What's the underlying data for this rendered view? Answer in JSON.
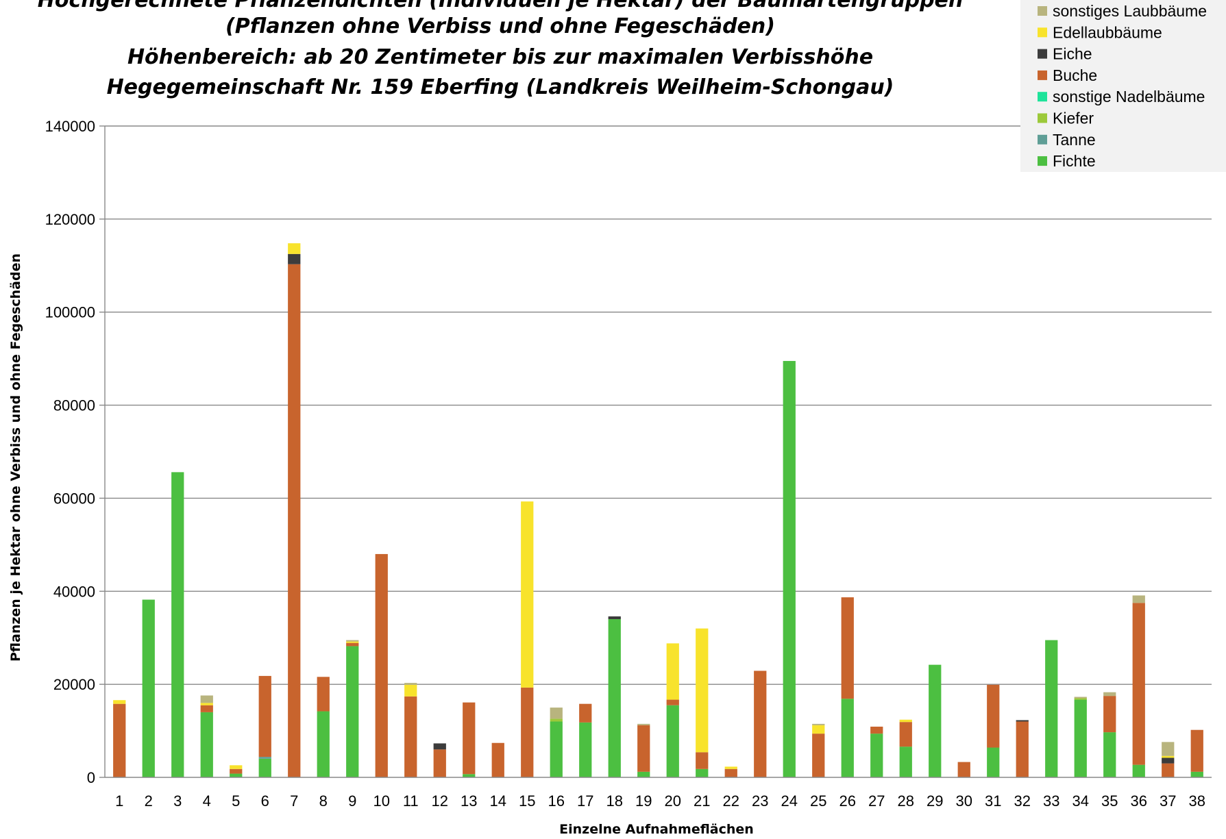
{
  "chart_data": {
    "type": "bar",
    "stacked": true,
    "title_lines": [
      "Hochgerechnete Pflanzendichten (Individuen je Hektar) der Baumartengruppen",
      "(Pflanzen ohne Verbiss und ohne Fegeschäden)",
      "Höhenbereich: ab 20 Zentimeter bis zur maximalen Verbisshöhe",
      "Hegegemeinschaft Nr. 159 Eberfing (Landkreis Weilheim-Schongau)"
    ],
    "xlabel": "Einzelne Aufnahmeflächen",
    "ylabel": "Pflanzen je Hektar ohne Verbiss und ohne Fegeschäden",
    "ylim": [
      0,
      140000
    ],
    "yticks": [
      0,
      20000,
      40000,
      60000,
      80000,
      100000,
      120000,
      140000
    ],
    "grid": true,
    "legend_position": "top-right",
    "categories": [
      "1",
      "2",
      "3",
      "4",
      "5",
      "6",
      "7",
      "8",
      "9",
      "10",
      "11",
      "12",
      "13",
      "14",
      "15",
      "16",
      "17",
      "18",
      "19",
      "20",
      "21",
      "22",
      "23",
      "24",
      "25",
      "26",
      "27",
      "28",
      "29",
      "30",
      "31",
      "32",
      "33",
      "34",
      "35",
      "36",
      "37",
      "38"
    ],
    "series": [
      {
        "name": "Fichte",
        "color": "#4cbf41",
        "values": [
          0,
          38200,
          65600,
          14000,
          800,
          4000,
          0,
          14200,
          28200,
          0,
          0,
          0,
          700,
          0,
          0,
          12000,
          11800,
          34000,
          1200,
          15500,
          1800,
          0,
          0,
          89500,
          0,
          16900,
          9400,
          6600,
          24200,
          0,
          6400,
          0,
          29500,
          16700,
          9700,
          2700,
          0,
          1200
        ]
      },
      {
        "name": "Tanne",
        "color": "#5f9e96",
        "values": [
          0,
          0,
          0,
          0,
          0,
          400,
          0,
          0,
          0,
          0,
          0,
          0,
          0,
          0,
          0,
          0,
          0,
          0,
          0,
          0,
          0,
          0,
          0,
          0,
          0,
          0,
          0,
          0,
          0,
          0,
          0,
          0,
          0,
          0,
          0,
          0,
          0,
          0
        ]
      },
      {
        "name": "Kiefer",
        "color": "#9cc93a",
        "values": [
          0,
          0,
          0,
          0,
          0,
          0,
          0,
          0,
          0,
          0,
          0,
          0,
          0,
          0,
          0,
          600,
          0,
          0,
          0,
          0,
          0,
          0,
          0,
          0,
          0,
          0,
          0,
          0,
          0,
          0,
          0,
          0,
          0,
          300,
          0,
          0,
          0,
          0
        ]
      },
      {
        "name": "sonstige Nadelbäume",
        "color": "#1ee39a",
        "values": [
          0,
          0,
          0,
          0,
          0,
          0,
          0,
          0,
          0,
          0,
          0,
          0,
          0,
          0,
          0,
          0,
          0,
          0,
          0,
          0,
          0,
          0,
          0,
          0,
          0,
          0,
          0,
          0,
          0,
          0,
          0,
          0,
          0,
          0,
          0,
          0,
          0,
          0
        ]
      },
      {
        "name": "Buche",
        "color": "#c8642d",
        "values": [
          15800,
          0,
          0,
          1500,
          1000,
          17400,
          110300,
          7400,
          700,
          48000,
          17400,
          6000,
          15400,
          7400,
          19300,
          0,
          4000,
          0,
          10000,
          1200,
          3600,
          1800,
          22900,
          0,
          9400,
          21800,
          1500,
          5300,
          0,
          3300,
          13500,
          12000,
          0,
          0,
          7800,
          34800,
          3000,
          9000
        ]
      },
      {
        "name": "Eiche",
        "color": "#3c3c3c",
        "values": [
          0,
          0,
          0,
          0,
          0,
          0,
          2200,
          0,
          0,
          0,
          0,
          1300,
          0,
          0,
          0,
          0,
          0,
          600,
          0,
          0,
          0,
          0,
          0,
          0,
          0,
          0,
          0,
          0,
          0,
          0,
          0,
          300,
          0,
          0,
          0,
          0,
          1200,
          0
        ]
      },
      {
        "name": "Edellaubbäume",
        "color": "#f8e32c",
        "values": [
          800,
          0,
          0,
          500,
          800,
          0,
          2300,
          0,
          300,
          0,
          2500,
          0,
          0,
          0,
          40000,
          0,
          0,
          0,
          0,
          12100,
          26600,
          500,
          0,
          0,
          1800,
          0,
          0,
          500,
          0,
          0,
          0,
          0,
          0,
          0,
          0,
          0,
          400,
          0
        ]
      },
      {
        "name": "sonstiges Laubbäume",
        "color": "#b8b47e",
        "values": [
          0,
          0,
          0,
          1600,
          0,
          0,
          0,
          0,
          300,
          0,
          400,
          0,
          0,
          0,
          0,
          2400,
          0,
          0,
          300,
          0,
          0,
          0,
          0,
          0,
          300,
          0,
          0,
          0,
          0,
          0,
          0,
          0,
          0,
          300,
          800,
          1600,
          3000,
          0
        ]
      }
    ]
  }
}
